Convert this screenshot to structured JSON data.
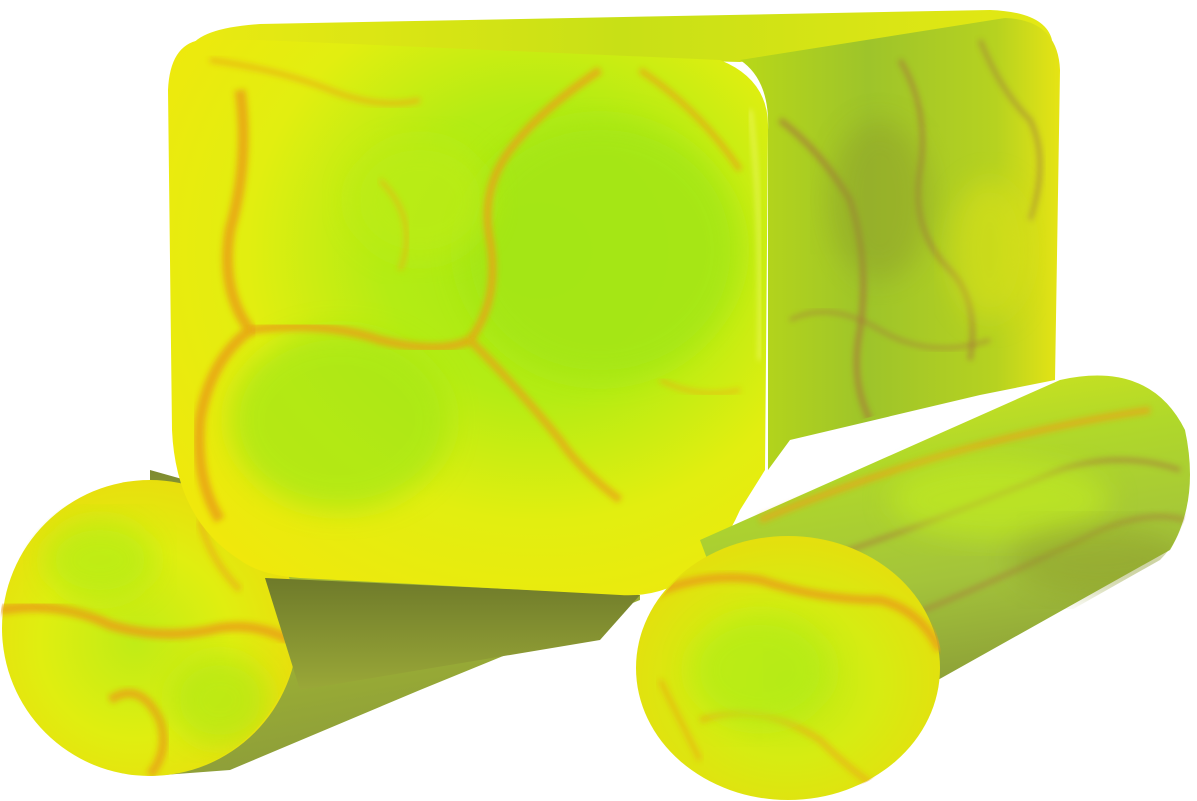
{
  "scene": {
    "object": "rounded-cube-on-two-cylinders",
    "background_color": "#ffffff",
    "colors": {
      "lime": "#a8e614",
      "lime_light": "#c6f21c",
      "yellow": "#f2ee0e",
      "yellow_deep": "#e8d40c",
      "orange_vein": "#e8a418",
      "olive_shadow": "#8c9a2a",
      "brown_vein": "#a87a3a"
    }
  }
}
